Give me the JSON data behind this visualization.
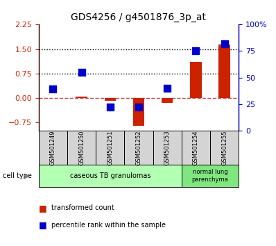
{
  "title": "GDS4256 / g4501876_3p_at",
  "samples": [
    "GSM501249",
    "GSM501250",
    "GSM501251",
    "GSM501252",
    "GSM501253",
    "GSM501254",
    "GSM501255"
  ],
  "transformed_count": [
    0.0,
    0.04,
    -0.1,
    -0.85,
    -0.15,
    1.1,
    1.65
  ],
  "percentile_rank_pct": [
    39,
    55,
    22,
    22,
    40,
    75,
    82
  ],
  "ylim_left": [
    -1.0,
    2.25
  ],
  "ylim_right": [
    0,
    100
  ],
  "yticks_left": [
    -0.75,
    0,
    0.75,
    1.5,
    2.25
  ],
  "yticks_right": [
    0,
    25,
    50,
    75,
    100
  ],
  "hlines": [
    0.75,
    1.5
  ],
  "bar_color": "#cc2200",
  "dot_color": "#0000cc",
  "bar_width": 0.4,
  "dot_size": 55,
  "zero_line_color": "#cc4444",
  "grp1_color": "#b3ffb3",
  "grp2_color": "#80e680",
  "sample_box_color": "#d4d4d4"
}
